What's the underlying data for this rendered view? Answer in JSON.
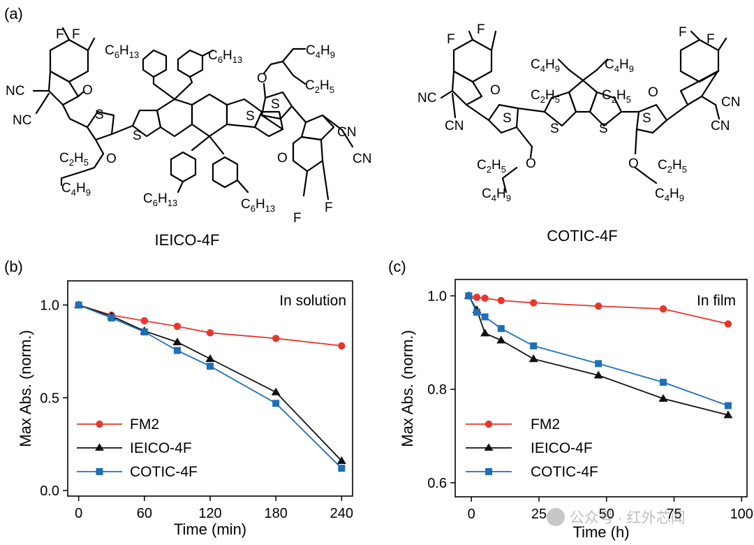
{
  "panel_labels": {
    "a": "(a)",
    "b": "(b)",
    "c": "(c)"
  },
  "molecules": {
    "left": {
      "name": "IEICO-4F",
      "atoms": {
        "f1": "F",
        "f2": "F",
        "f3": "F",
        "f4": "F",
        "o1": "O",
        "o2": "O",
        "o3": "O",
        "o4": "O",
        "s1": "S",
        "s2": "S",
        "s3": "S",
        "s4": "S",
        "nc1": "NC",
        "nc2": "NC",
        "cn1": "CN",
        "cn2": "CN",
        "c6_1": "C6H13",
        "c6_2": "C6H13",
        "c6_3": "C6H13",
        "c6_4": "C6H13",
        "c2_1": "C2H5",
        "c4_1": "C4H9",
        "c4_2": "C4H9",
        "c2_2": "C2H5"
      }
    },
    "right": {
      "name": "COTIC-4F",
      "atoms": {
        "f1": "F",
        "f2": "F",
        "f3": "F",
        "f4": "F",
        "o1": "O",
        "o2": "O",
        "o3": "O",
        "o4": "O",
        "s1": "S",
        "s2": "S",
        "s3": "S",
        "s4": "S",
        "nc1": "NC",
        "cn1": "CN",
        "cn2": "CN",
        "cn3": "CN",
        "c4_1": "C4H9",
        "c2_1": "C2H5",
        "c4_2": "C4H9",
        "c2_2": "C2H5",
        "c2_3": "C2H5",
        "c4_3": "C4H9",
        "c2_4": "C2H5",
        "c4_4": "C4H9"
      }
    }
  },
  "chart_data": [
    {
      "panel": "(b)",
      "type": "line",
      "title": "In solution",
      "xlabel": "Time (min)",
      "ylabel": "Max Abs. (norm.)",
      "xlim": [
        -10,
        250
      ],
      "ylim": [
        -0.03,
        1.13
      ],
      "xticks": [
        0,
        60,
        120,
        180,
        240
      ],
      "yticks": [
        0.0,
        0.5,
        1.0
      ],
      "ytick_labels": [
        "0.0",
        "0.5",
        "1.0"
      ],
      "legend_position": "bottom-left",
      "series": [
        {
          "name": "FM2",
          "color": "#e8362f",
          "marker": "circle",
          "x": [
            0,
            30,
            60,
            90,
            120,
            180,
            240
          ],
          "y": [
            1.0,
            0.945,
            0.915,
            0.885,
            0.85,
            0.82,
            0.78
          ]
        },
        {
          "name": "IEICO-4F",
          "color": "#111111",
          "marker": "triangle",
          "x": [
            0,
            30,
            60,
            90,
            120,
            180,
            240
          ],
          "y": [
            1.0,
            0.94,
            0.86,
            0.8,
            0.71,
            0.53,
            0.16
          ]
        },
        {
          "name": "COTIC-4F",
          "color": "#1f6fb8",
          "marker": "square",
          "x": [
            0,
            30,
            60,
            90,
            120,
            180,
            240
          ],
          "y": [
            1.0,
            0.93,
            0.855,
            0.755,
            0.67,
            0.47,
            0.12
          ]
        }
      ]
    },
    {
      "panel": "(c)",
      "type": "line",
      "title": "In film",
      "xlabel": "Time (h)",
      "ylabel": "Max Abs. (norm.)",
      "xlim": [
        -6,
        102
      ],
      "ylim": [
        0.57,
        1.035
      ],
      "xticks": [
        0,
        25,
        50,
        75,
        100
      ],
      "yticks": [
        0.6,
        0.8,
        1.0
      ],
      "ytick_labels": [
        "0.6",
        "0.8",
        "1.0"
      ],
      "legend_position": "bottom-left",
      "watermark": "公众号 · 红外芯闻",
      "series": [
        {
          "name": "FM2",
          "color": "#e8362f",
          "marker": "circle",
          "x": [
            -1,
            2,
            5,
            11,
            23,
            47,
            71,
            95
          ],
          "y": [
            1.0,
            0.997,
            0.995,
            0.99,
            0.985,
            0.978,
            0.972,
            0.94
          ]
        },
        {
          "name": "IEICO-4F",
          "color": "#111111",
          "marker": "triangle",
          "x": [
            -1,
            2,
            5,
            11,
            23,
            47,
            71,
            95
          ],
          "y": [
            1.0,
            0.97,
            0.92,
            0.905,
            0.865,
            0.83,
            0.78,
            0.745
          ]
        },
        {
          "name": "COTIC-4F",
          "color": "#1f6fb8",
          "marker": "square",
          "x": [
            -1,
            2,
            5,
            11,
            23,
            47,
            71,
            95
          ],
          "y": [
            1.0,
            0.965,
            0.955,
            0.93,
            0.893,
            0.855,
            0.815,
            0.765
          ]
        }
      ]
    }
  ]
}
